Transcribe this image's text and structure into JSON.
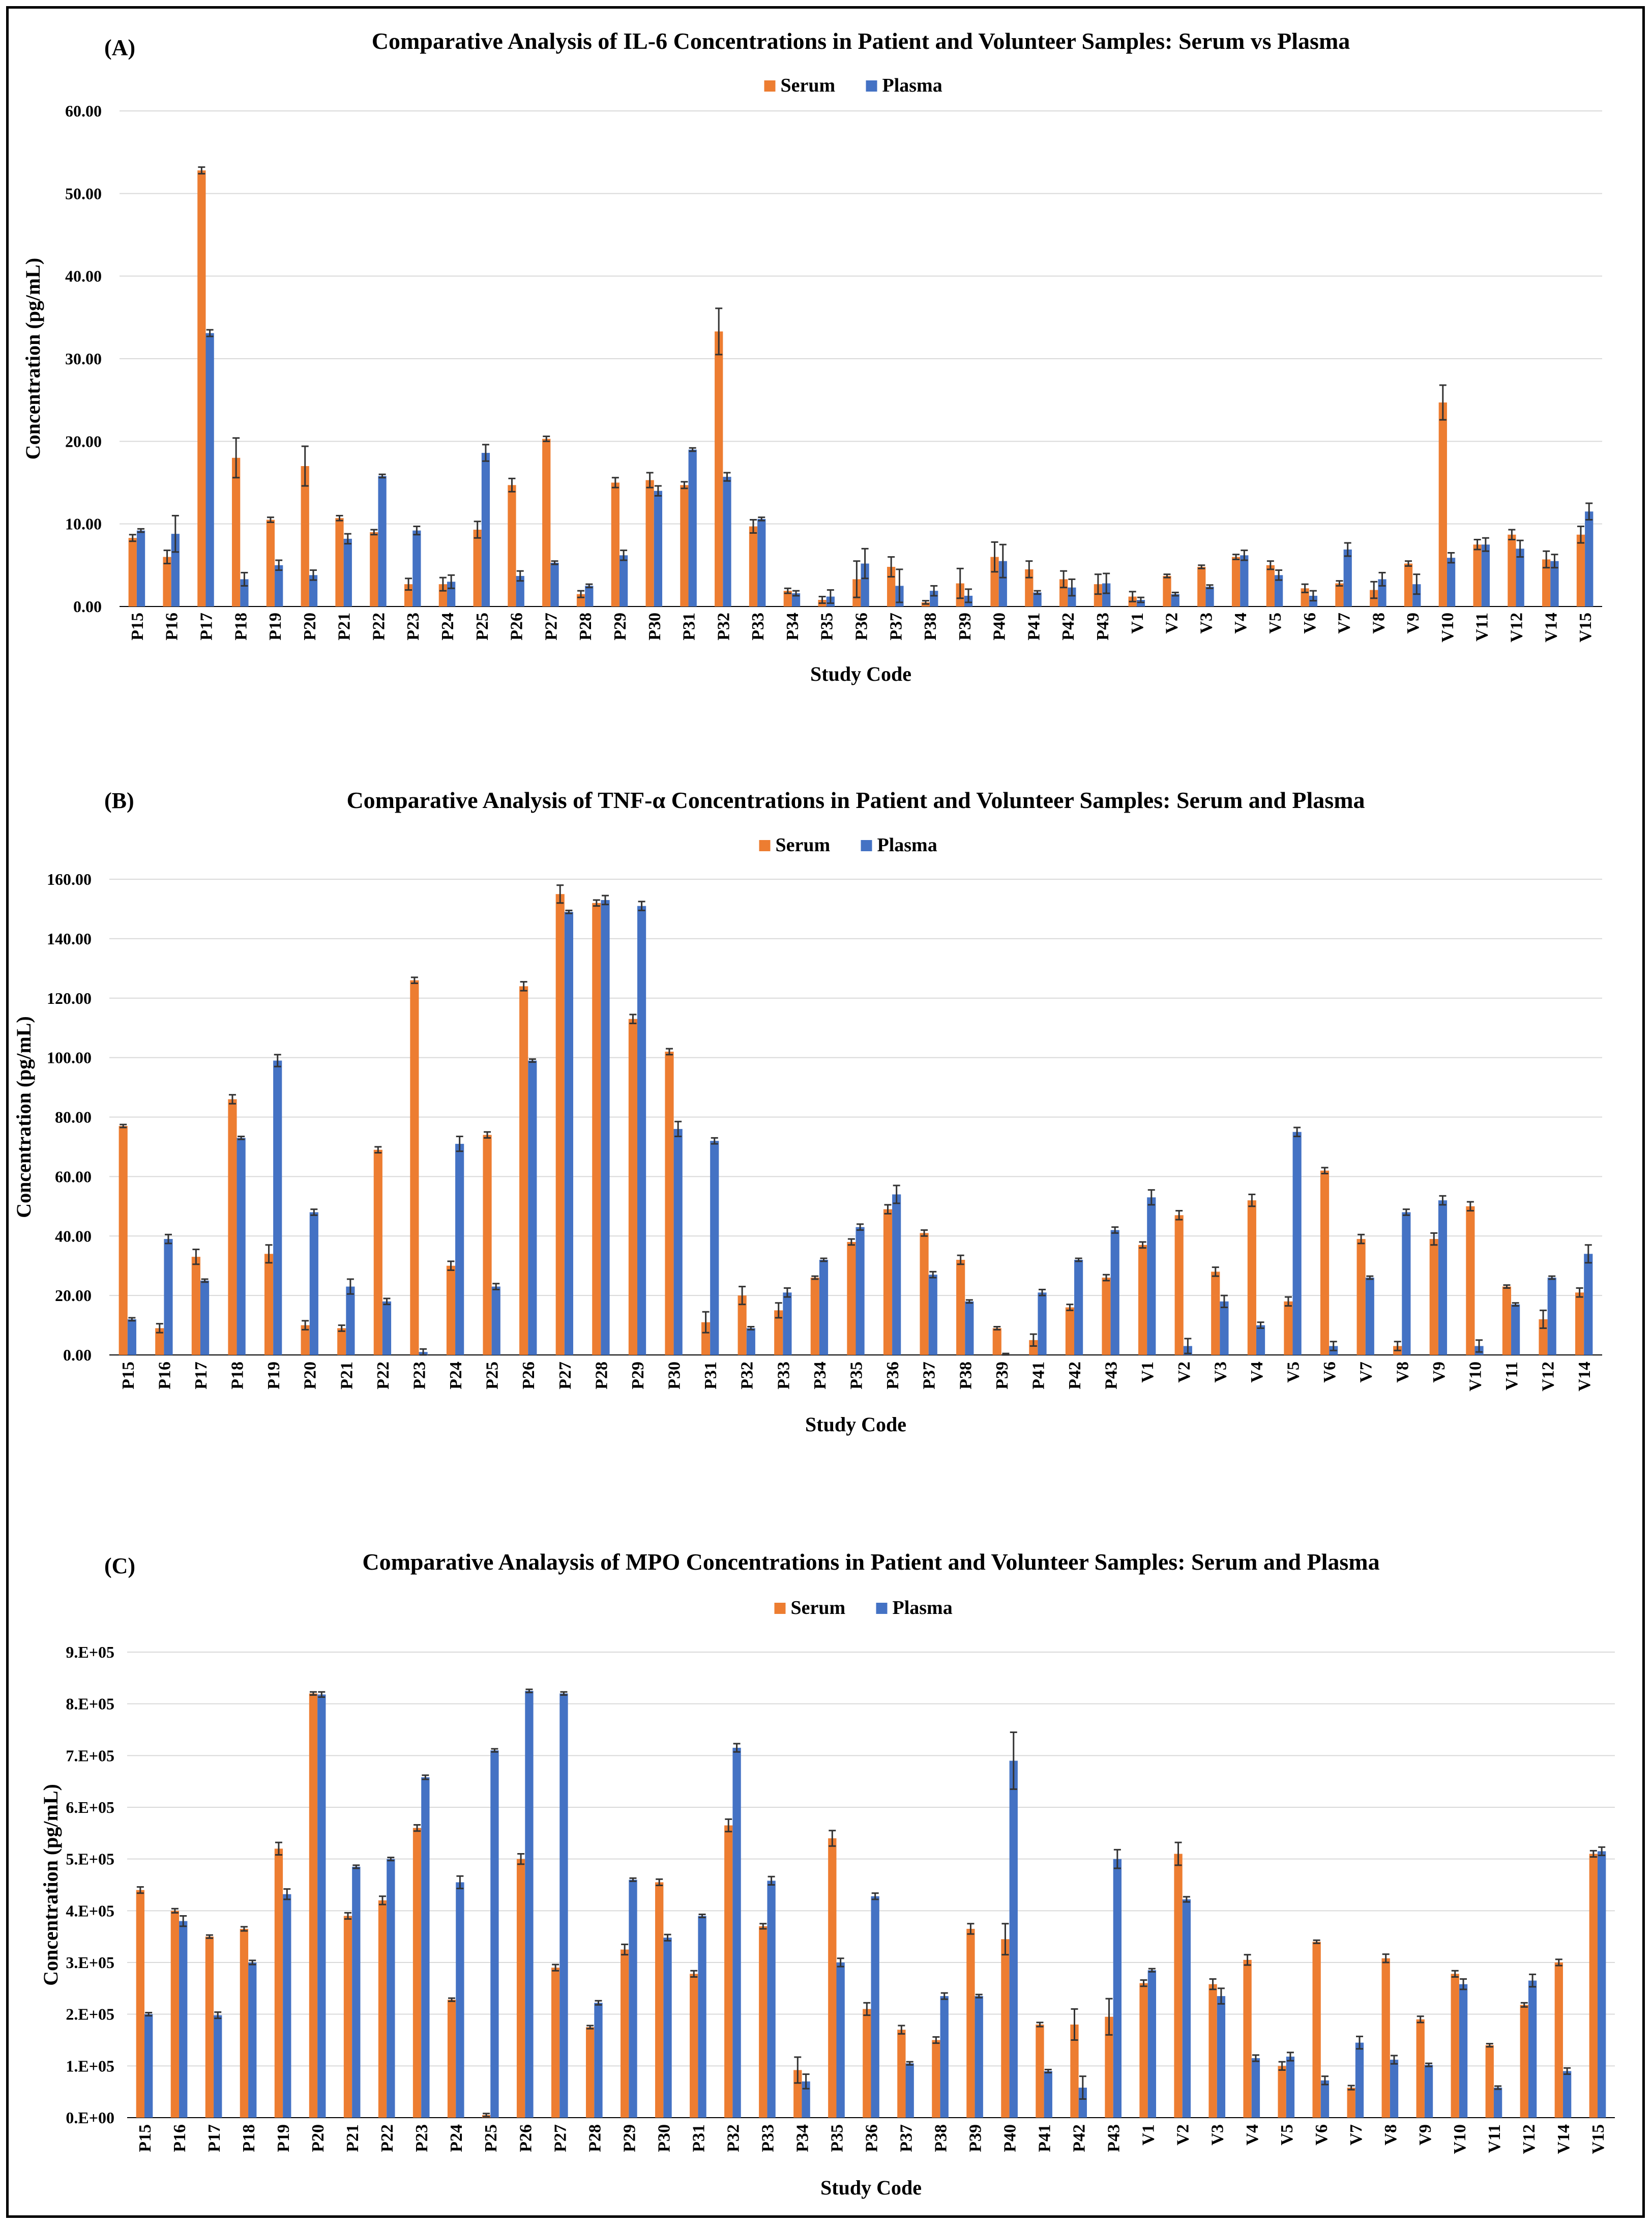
{
  "colors": {
    "serum": "#ED7D31",
    "plasma": "#4472C4"
  },
  "chart_data": [
    {
      "panel": "(A)",
      "type": "bar",
      "title": "Comparative Analysis of IL-6 Concentrations in Patient and Volunteer Samples: Serum vs Plasma",
      "xlabel": "Study Code",
      "ylabel": "Concentration (pg/mL)",
      "ylim": [
        0,
        60
      ],
      "yticks": [
        0,
        10,
        20,
        30,
        40,
        50,
        60
      ],
      "ytick_labels": [
        "0.00",
        "10.00",
        "20.00",
        "30.00",
        "40.00",
        "50.00",
        "60.00"
      ],
      "legend": [
        "Serum",
        "Plasma"
      ],
      "categories": [
        "P15",
        "P16",
        "P17",
        "P18",
        "P19",
        "P20",
        "P21",
        "P22",
        "P23",
        "P24",
        "P25",
        "P26",
        "P27",
        "P28",
        "P29",
        "P30",
        "P31",
        "P32",
        "P33",
        "P34",
        "P35",
        "P36",
        "P37",
        "P38",
        "P39",
        "P40",
        "P41",
        "P42",
        "P43",
        "V1",
        "V2",
        "V3",
        "V4",
        "V5",
        "V6",
        "V7",
        "V8",
        "V9",
        "V10",
        "V11",
        "V12",
        "V14",
        "V15"
      ],
      "series": [
        {
          "name": "Serum",
          "values": [
            8.3,
            6.0,
            52.8,
            18.0,
            10.5,
            17.0,
            10.7,
            9.0,
            2.7,
            2.7,
            9.3,
            14.7,
            20.3,
            1.5,
            15.0,
            15.3,
            14.7,
            33.3,
            9.7,
            1.9,
            0.8,
            3.3,
            4.8,
            0.5,
            2.8,
            6.0,
            4.5,
            3.3,
            2.7,
            1.2,
            3.7,
            4.8,
            6.0,
            5.0,
            2.2,
            2.8,
            2.0,
            5.2,
            24.7,
            7.5,
            8.7,
            5.7,
            8.7
          ],
          "errors": [
            0.4,
            0.8,
            0.4,
            2.4,
            0.3,
            2.4,
            0.3,
            0.3,
            0.7,
            0.8,
            1.0,
            0.8,
            0.3,
            0.4,
            0.6,
            0.9,
            0.4,
            2.8,
            0.8,
            0.3,
            0.4,
            2.2,
            1.2,
            0.2,
            1.8,
            1.8,
            1.0,
            1.0,
            1.2,
            0.6,
            0.2,
            0.2,
            0.3,
            0.5,
            0.5,
            0.3,
            1.0,
            0.3,
            2.1,
            0.6,
            0.6,
            1.0,
            1.0
          ]
        },
        {
          "name": "Plasma",
          "values": [
            9.2,
            8.8,
            33.1,
            3.3,
            5.0,
            3.8,
            8.2,
            15.8,
            9.2,
            3.0,
            18.6,
            3.7,
            5.3,
            2.5,
            6.2,
            14.0,
            19.0,
            15.7,
            10.6,
            1.6,
            1.2,
            5.2,
            2.5,
            1.9,
            1.3,
            5.5,
            1.7,
            2.3,
            2.8,
            0.8,
            1.5,
            2.4,
            6.2,
            3.8,
            1.3,
            6.9,
            3.3,
            2.7,
            5.9,
            7.5,
            7.0,
            5.5,
            11.5
          ],
          "errors": [
            0.2,
            2.2,
            0.4,
            0.8,
            0.6,
            0.6,
            0.6,
            0.2,
            0.5,
            0.8,
            1.0,
            0.6,
            0.2,
            0.2,
            0.6,
            0.6,
            0.2,
            0.5,
            0.2,
            0.3,
            0.8,
            1.8,
            2.0,
            0.6,
            0.8,
            2.0,
            0.2,
            1.0,
            1.2,
            0.3,
            0.2,
            0.2,
            0.6,
            0.6,
            0.6,
            0.8,
            0.8,
            1.2,
            0.6,
            0.8,
            1.0,
            0.8,
            1.0
          ]
        }
      ]
    },
    {
      "panel": "(B)",
      "type": "bar",
      "title": "Comparative Analysis of TNF-α Concentrations in Patient and Volunteer Samples: Serum and Plasma",
      "xlabel": "Study Code",
      "ylabel": "Concentration (pg/mL)",
      "ylim": [
        0,
        160
      ],
      "yticks": [
        0,
        20,
        40,
        60,
        80,
        100,
        120,
        140,
        160
      ],
      "ytick_labels": [
        "0.00",
        "20.00",
        "40.00",
        "60.00",
        "80.00",
        "100.00",
        "120.00",
        "140.00",
        "160.00"
      ],
      "legend": [
        "Serum",
        "Plasma"
      ],
      "categories": [
        "P15",
        "P16",
        "P17",
        "P18",
        "P19",
        "P20",
        "P21",
        "P22",
        "P23",
        "P24",
        "P25",
        "P26",
        "P27",
        "P28",
        "P29",
        "P30",
        "P31",
        "P32",
        "P33",
        "P34",
        "P35",
        "P36",
        "P37",
        "P38",
        "P39",
        "P41",
        "P42",
        "P43",
        "V1",
        "V2",
        "V3",
        "V4",
        "V5",
        "V6",
        "V7",
        "V8",
        "V9",
        "V10",
        "V11",
        "V12",
        "V14"
      ],
      "series": [
        {
          "name": "Serum",
          "values": [
            77,
            9,
            33,
            86,
            34,
            10,
            9,
            69,
            126,
            30,
            74,
            124,
            155,
            152,
            113,
            102,
            11,
            20,
            15,
            26,
            38,
            49,
            41,
            32,
            9,
            5,
            16,
            26,
            37,
            47,
            28,
            52,
            18,
            62,
            39,
            3,
            39,
            50,
            23,
            12,
            21
          ],
          "errors": [
            0.5,
            1.5,
            2.5,
            1.5,
            3,
            1.5,
            1,
            1,
            1,
            1.5,
            1,
            1.5,
            3,
            1,
            1.5,
            1,
            3.5,
            3,
            2.5,
            0.5,
            1,
            1.5,
            1,
            1.5,
            0.5,
            2,
            1,
            1,
            1,
            1.5,
            1.5,
            2,
            1.5,
            1,
            1.5,
            1.5,
            2,
            1.5,
            0.5,
            3,
            1.5
          ]
        },
        {
          "name": "Plasma",
          "values": [
            12,
            39,
            25,
            73,
            99,
            48,
            23,
            18,
            1,
            71,
            23,
            99,
            149,
            153,
            151,
            76,
            72,
            9,
            21,
            32,
            43,
            54,
            27,
            18,
            0,
            21,
            32,
            42,
            53,
            3,
            18,
            10,
            75,
            3,
            26,
            48,
            52,
            3,
            17,
            26,
            34
          ],
          "errors": [
            0.5,
            1.5,
            0.5,
            0.5,
            2,
            1,
            2.5,
            1,
            1,
            2.5,
            1,
            0.5,
            0.5,
            1.5,
            1.5,
            2.5,
            1,
            0.5,
            1.5,
            0.5,
            1,
            3,
            1,
            0.5,
            0.5,
            1,
            0.5,
            1,
            2.5,
            2.5,
            2,
            1,
            1.5,
            1.5,
            0.5,
            1,
            1.5,
            2,
            0.5,
            0.5,
            3
          ]
        }
      ]
    },
    {
      "panel": "(C)",
      "type": "bar",
      "title": "Comparative Analaysis of MPO Concentrations in Patient and Volunteer Samples: Serum and Plasma",
      "xlabel": "Study Code",
      "ylabel": "Concentration (pg/mL)",
      "ylim": [
        0,
        900000
      ],
      "yticks": [
        0,
        100000,
        200000,
        300000,
        400000,
        500000,
        600000,
        700000,
        800000,
        900000
      ],
      "ytick_labels": [
        "0.E+00",
        "1.E+05",
        "2.E+05",
        "3.E+05",
        "4.E+05",
        "5.E+05",
        "6.E+05",
        "7.E+05",
        "8.E+05",
        "9.E+05"
      ],
      "legend": [
        "Serum",
        "Plasma"
      ],
      "categories": [
        "P15",
        "P16",
        "P17",
        "P18",
        "P19",
        "P20",
        "P21",
        "P22",
        "P23",
        "P24",
        "P25",
        "P26",
        "P27",
        "P28",
        "P29",
        "P30",
        "P31",
        "P32",
        "P33",
        "P34",
        "P35",
        "P36",
        "P37",
        "P38",
        "P39",
        "P40",
        "P41",
        "P42",
        "P43",
        "V1",
        "V2",
        "V3",
        "V4",
        "V5",
        "V6",
        "V7",
        "V8",
        "V9",
        "V10",
        "V11",
        "V12",
        "V14",
        "V15"
      ],
      "series": [
        {
          "name": "Serum",
          "values": [
            440000,
            400000,
            350000,
            365000,
            520000,
            820000,
            390000,
            420000,
            560000,
            228000,
            5000,
            500000,
            290000,
            175000,
            325000,
            455000,
            278000,
            565000,
            370000,
            92000,
            540000,
            210000,
            170000,
            150000,
            365000,
            345000,
            180000,
            180000,
            195000,
            260000,
            510000,
            258000,
            305000,
            100000,
            340000,
            58000,
            308000,
            190000,
            278000,
            140000,
            218000,
            300000,
            510000
          ],
          "errors": [
            6000,
            4000,
            3000,
            4000,
            12000,
            3000,
            6000,
            8000,
            6000,
            3000,
            3000,
            10000,
            6000,
            3000,
            10000,
            6000,
            6000,
            12000,
            5000,
            25000,
            15000,
            12000,
            8000,
            6000,
            10000,
            30000,
            4000,
            30000,
            35000,
            6000,
            22000,
            10000,
            10000,
            8000,
            3000,
            4000,
            8000,
            6000,
            6000,
            3000,
            4000,
            6000,
            6000
          ]
        },
        {
          "name": "Plasma",
          "values": [
            200000,
            380000,
            198000,
            300000,
            432000,
            818000,
            485000,
            500000,
            658000,
            455000,
            710000,
            825000,
            820000,
            222000,
            460000,
            348000,
            390000,
            715000,
            458000,
            70000,
            300000,
            428000,
            105000,
            235000,
            235000,
            690000,
            90000,
            58000,
            500000,
            285000,
            422000,
            235000,
            115000,
            118000,
            72000,
            145000,
            112000,
            102000,
            258000,
            58000,
            265000,
            90000,
            515000
          ],
          "errors": [
            3000,
            10000,
            6000,
            4000,
            10000,
            5000,
            3000,
            3000,
            4000,
            12000,
            3000,
            3000,
            3000,
            4000,
            3000,
            6000,
            3000,
            8000,
            8000,
            14000,
            8000,
            6000,
            3000,
            6000,
            3000,
            55000,
            3000,
            22000,
            18000,
            3000,
            5000,
            15000,
            6000,
            8000,
            8000,
            12000,
            8000,
            3000,
            10000,
            3000,
            12000,
            6000,
            8000
          ]
        }
      ]
    }
  ]
}
